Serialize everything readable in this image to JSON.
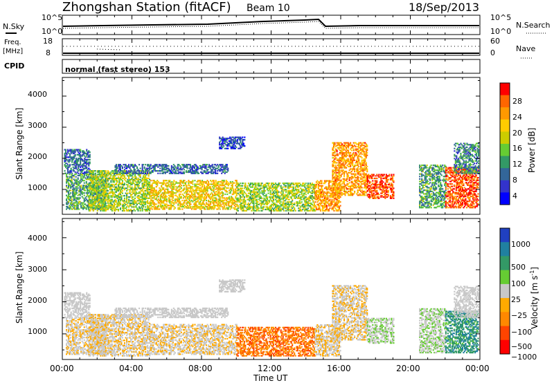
{
  "header": {
    "title": "Zhongshan Station (fitACF)",
    "beam": "Beam 10",
    "date": "18/Sep/2013"
  },
  "top_panels": {
    "nsky_label": "N.Sky",
    "nsky_ticks": [
      "10^5",
      "10^0"
    ],
    "nsearch_label": "N.Search",
    "nsearch_ticks": [
      "10^5",
      "10^0"
    ],
    "freq_label": "Freq.",
    "freq_unit": "[MHz]",
    "freq_ticks": [
      "18",
      "8"
    ],
    "nave_label": "Nave",
    "nave_ticks": [
      "60",
      "0"
    ],
    "cpid_label": "CPID",
    "cpid_text": "normal (fast stereo) 153"
  },
  "axes": {
    "ylabel": "Slant Range [km]",
    "yticks": [
      "4000",
      "3000",
      "2000",
      "1000"
    ],
    "xlabel": "Time UT",
    "xticks": [
      "00:00",
      "04:00",
      "08:00",
      "12:00",
      "16:00",
      "20:00",
      "00:00"
    ]
  },
  "colorbars": {
    "power": {
      "label": "Power [dB]",
      "ticks": [
        "28",
        "24",
        "20",
        "16",
        "12",
        "8",
        "4"
      ],
      "colors": [
        "#ff0000",
        "#ff6600",
        "#ff9900",
        "#ffcc00",
        "#cccc00",
        "#66cc33",
        "#339966",
        "#336699",
        "#3333cc",
        "#0000ff"
      ]
    },
    "velocity": {
      "label": "Velocity [m s",
      "label_sup": "-1",
      "label_end": "]",
      "ticks": [
        "1000",
        "500",
        "100",
        "25",
        "−25",
        "−100",
        "−500",
        "−1000"
      ],
      "colors": [
        "#2040c0",
        "#2080a0",
        "#339966",
        "#66cc33",
        "#c8c8c8",
        "#ffaa00",
        "#ff8800",
        "#ff4400",
        "#ff0000"
      ]
    }
  },
  "chart_data": {
    "type": "heatmap",
    "title": "Zhongshan Station (fitACF)",
    "xlabel": "Time UT",
    "ylabel": "Slant Range [km]",
    "xlim": [
      0,
      24
    ],
    "ylim": [
      200,
      4600
    ],
    "power_clim": [
      0,
      32
    ],
    "velocity_clim": [
      -1000,
      1000
    ],
    "scatter_regions": [
      {
        "t0": 0.1,
        "t1": 1.6,
        "r0": 1500,
        "r1": 2300,
        "power": 8,
        "velocity": 25
      },
      {
        "t0": 0.2,
        "t1": 2.5,
        "r0": 350,
        "r1": 1500,
        "power": 12,
        "velocity": -100
      },
      {
        "t0": 1.5,
        "t1": 5.0,
        "r0": 300,
        "r1": 1600,
        "power": 16,
        "velocity": -100
      },
      {
        "t0": 3.0,
        "t1": 9.5,
        "r0": 1500,
        "r1": 1800,
        "power": 8,
        "velocity": 25
      },
      {
        "t0": 5.0,
        "t1": 10.0,
        "r0": 350,
        "r1": 1300,
        "power": 20,
        "velocity": -100
      },
      {
        "t0": 9.0,
        "t1": 10.5,
        "r0": 2300,
        "r1": 2700,
        "power": 6,
        "velocity": 25
      },
      {
        "t0": 10.0,
        "t1": 14.5,
        "r0": 300,
        "r1": 1200,
        "power": 16,
        "velocity": -500
      },
      {
        "t0": 14.5,
        "t1": 16.0,
        "r0": 300,
        "r1": 1300,
        "power": 24,
        "velocity": -100
      },
      {
        "t0": 15.5,
        "t1": 17.5,
        "r0": 800,
        "r1": 2500,
        "power": 24,
        "velocity": -100
      },
      {
        "t0": 17.5,
        "t1": 19.0,
        "r0": 700,
        "r1": 1500,
        "power": 28,
        "velocity": 100
      },
      {
        "t0": 20.5,
        "t1": 22.0,
        "r0": 400,
        "r1": 1800,
        "power": 12,
        "velocity": 100
      },
      {
        "t0": 22.0,
        "t1": 23.9,
        "r0": 400,
        "r1": 1700,
        "power": 28,
        "velocity": 500
      },
      {
        "t0": 22.5,
        "t1": 23.9,
        "r0": 1500,
        "r1": 2500,
        "power": 10,
        "velocity": 25
      }
    ]
  }
}
